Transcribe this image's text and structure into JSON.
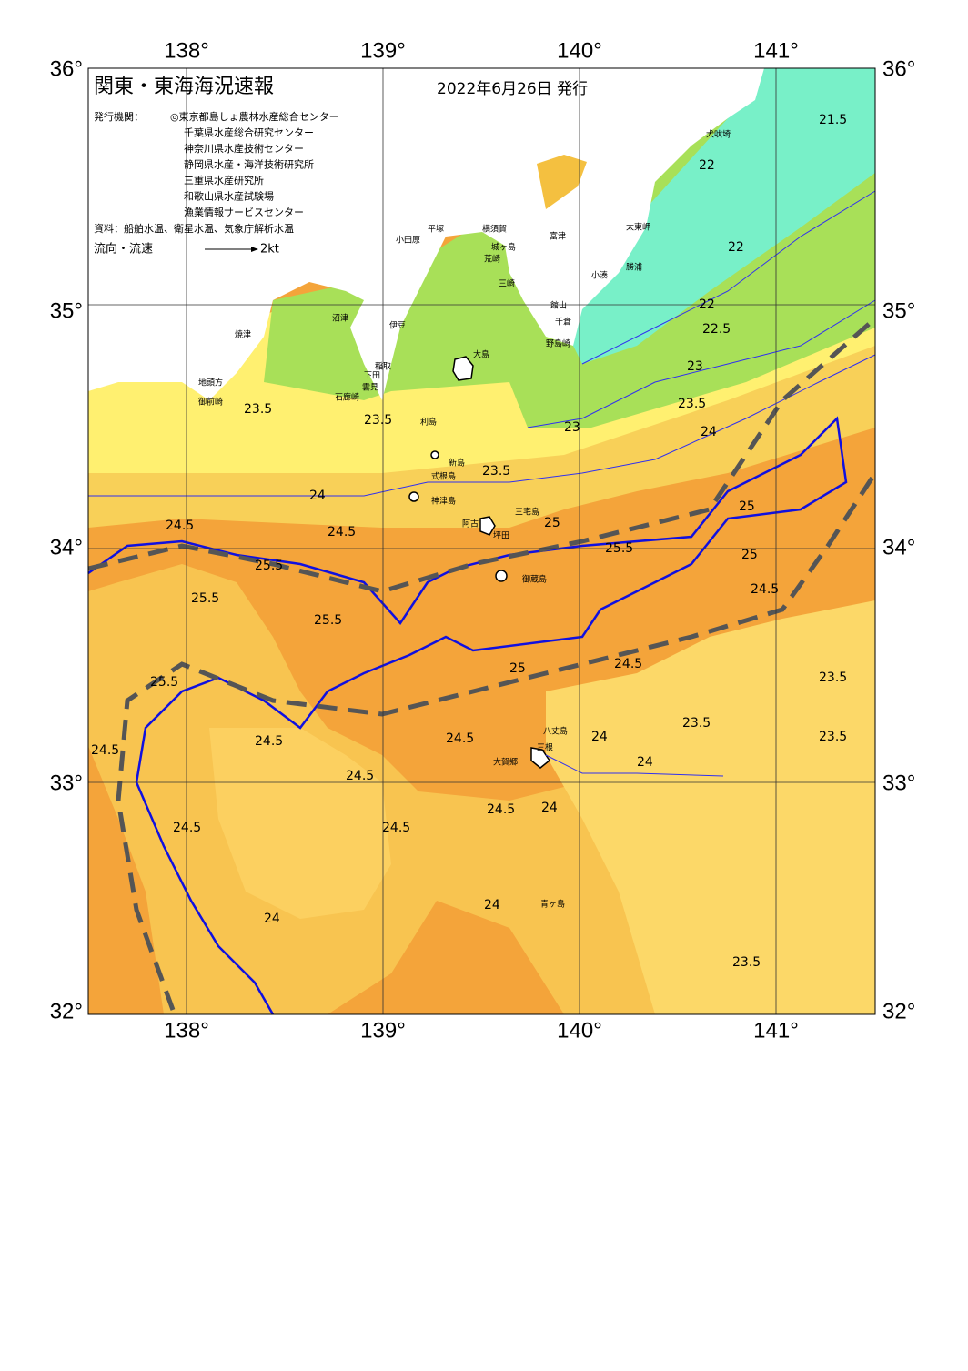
{
  "header": {
    "title": "関東・東海海況速報",
    "date": "2022年6月26日 発行"
  },
  "agencies": {
    "label": "発行機関：",
    "items": [
      "◎東京都島しょ農林水産総合センター",
      "千葉県水産総合研究センター",
      "神奈川県水産技術センター",
      "静岡県水産・海洋技術研究所",
      "三重県水産研究所",
      "和歌山県水産試験場",
      "漁業情報サービスセンター"
    ]
  },
  "source": "資料：船舶水温、衛星水温、気象庁解析水温",
  "legend": {
    "label": "流向・流速",
    "speed": "2kt"
  },
  "map": {
    "lon_ticks": [
      "138°",
      "139°",
      "140°",
      "141°"
    ],
    "lat_ticks": [
      "36°",
      "35°",
      "34°",
      "33°",
      "32°"
    ],
    "places": [
      "犬吠埼",
      "太東岬",
      "小田原",
      "平塚",
      "横須賀",
      "城ヶ島",
      "荒崎",
      "富津",
      "三崎",
      "小湊",
      "勝浦",
      "館山",
      "千倉",
      "野島崎",
      "大島",
      "沼津",
      "伊豆",
      "焼津",
      "稲取",
      "下田",
      "雲見",
      "石廊崎",
      "地頭方",
      "御前崎",
      "利島",
      "新島",
      "式根島",
      "神津島",
      "三宅島",
      "阿古",
      "坪田",
      "御蔵島",
      "八丈島",
      "三根",
      "大賀郷",
      "青ヶ島"
    ],
    "isotherm_labels": [
      "21.5",
      "22",
      "22",
      "22",
      "22.5",
      "23",
      "23",
      "23.5",
      "23.5",
      "23.5",
      "23.5",
      "24",
      "24",
      "24.5",
      "24.5",
      "25",
      "25",
      "25.5",
      "25.5",
      "25.5",
      "25.5",
      "25.5",
      "24.5",
      "24.5",
      "24.5",
      "24.5",
      "24.5",
      "24.5",
      "24.5",
      "24",
      "24",
      "24",
      "24",
      "24",
      "23.5",
      "23.5",
      "23.5",
      "23.5",
      "24.5",
      "25",
      "25",
      "24.5"
    ]
  }
}
